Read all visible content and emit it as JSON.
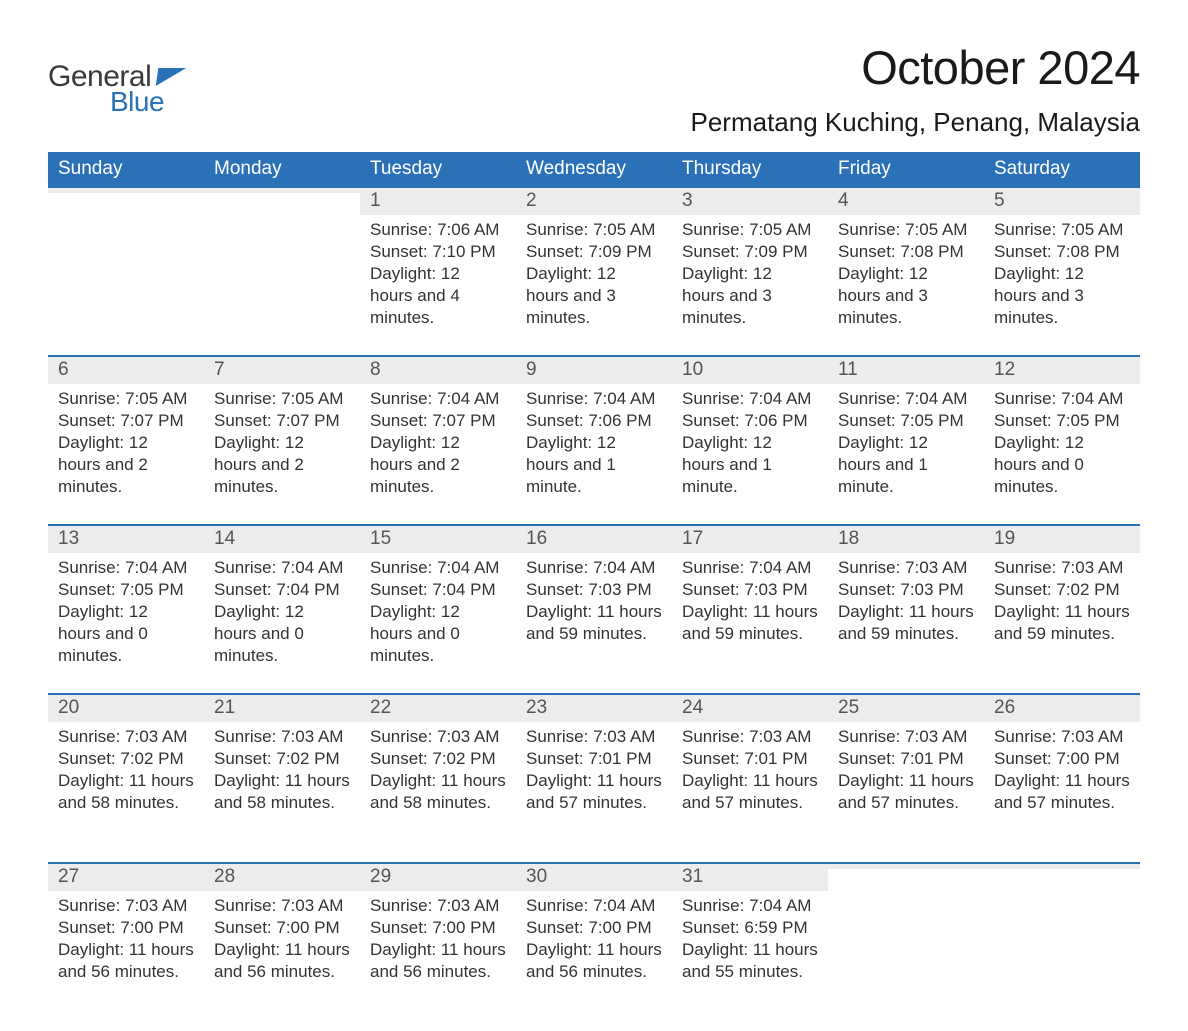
{
  "brand": {
    "word1": "General",
    "word2": "Blue"
  },
  "title": "October 2024",
  "location": "Permatang Kuching, Penang, Malaysia",
  "styling": {
    "header_bg": "#2a71b8",
    "header_fg": "#ffffff",
    "row_accent": "#2a71b8",
    "daynum_bg": "#ececec",
    "body_bg": "#ffffff",
    "text_color": "#333333",
    "title_fontsize": 47,
    "location_fontsize": 26,
    "header_fontsize": 19,
    "daynum_fontsize": 19,
    "body_fontsize": 17
  },
  "weekdays": [
    "Sunday",
    "Monday",
    "Tuesday",
    "Wednesday",
    "Thursday",
    "Friday",
    "Saturday"
  ],
  "weeks": [
    [
      null,
      null,
      {
        "n": "1",
        "sr": "7:06 AM",
        "ss": "7:10 PM",
        "dl": "12 hours and 4 minutes."
      },
      {
        "n": "2",
        "sr": "7:05 AM",
        "ss": "7:09 PM",
        "dl": "12 hours and 3 minutes."
      },
      {
        "n": "3",
        "sr": "7:05 AM",
        "ss": "7:09 PM",
        "dl": "12 hours and 3 minutes."
      },
      {
        "n": "4",
        "sr": "7:05 AM",
        "ss": "7:08 PM",
        "dl": "12 hours and 3 minutes."
      },
      {
        "n": "5",
        "sr": "7:05 AM",
        "ss": "7:08 PM",
        "dl": "12 hours and 3 minutes."
      }
    ],
    [
      {
        "n": "6",
        "sr": "7:05 AM",
        "ss": "7:07 PM",
        "dl": "12 hours and 2 minutes."
      },
      {
        "n": "7",
        "sr": "7:05 AM",
        "ss": "7:07 PM",
        "dl": "12 hours and 2 minutes."
      },
      {
        "n": "8",
        "sr": "7:04 AM",
        "ss": "7:07 PM",
        "dl": "12 hours and 2 minutes."
      },
      {
        "n": "9",
        "sr": "7:04 AM",
        "ss": "7:06 PM",
        "dl": "12 hours and 1 minute."
      },
      {
        "n": "10",
        "sr": "7:04 AM",
        "ss": "7:06 PM",
        "dl": "12 hours and 1 minute."
      },
      {
        "n": "11",
        "sr": "7:04 AM",
        "ss": "7:05 PM",
        "dl": "12 hours and 1 minute."
      },
      {
        "n": "12",
        "sr": "7:04 AM",
        "ss": "7:05 PM",
        "dl": "12 hours and 0 minutes."
      }
    ],
    [
      {
        "n": "13",
        "sr": "7:04 AM",
        "ss": "7:05 PM",
        "dl": "12 hours and 0 minutes."
      },
      {
        "n": "14",
        "sr": "7:04 AM",
        "ss": "7:04 PM",
        "dl": "12 hours and 0 minutes."
      },
      {
        "n": "15",
        "sr": "7:04 AM",
        "ss": "7:04 PM",
        "dl": "12 hours and 0 minutes."
      },
      {
        "n": "16",
        "sr": "7:04 AM",
        "ss": "7:03 PM",
        "dl": "11 hours and 59 minutes."
      },
      {
        "n": "17",
        "sr": "7:04 AM",
        "ss": "7:03 PM",
        "dl": "11 hours and 59 minutes."
      },
      {
        "n": "18",
        "sr": "7:03 AM",
        "ss": "7:03 PM",
        "dl": "11 hours and 59 minutes."
      },
      {
        "n": "19",
        "sr": "7:03 AM",
        "ss": "7:02 PM",
        "dl": "11 hours and 59 minutes."
      }
    ],
    [
      {
        "n": "20",
        "sr": "7:03 AM",
        "ss": "7:02 PM",
        "dl": "11 hours and 58 minutes."
      },
      {
        "n": "21",
        "sr": "7:03 AM",
        "ss": "7:02 PM",
        "dl": "11 hours and 58 minutes."
      },
      {
        "n": "22",
        "sr": "7:03 AM",
        "ss": "7:02 PM",
        "dl": "11 hours and 58 minutes."
      },
      {
        "n": "23",
        "sr": "7:03 AM",
        "ss": "7:01 PM",
        "dl": "11 hours and 57 minutes."
      },
      {
        "n": "24",
        "sr": "7:03 AM",
        "ss": "7:01 PM",
        "dl": "11 hours and 57 minutes."
      },
      {
        "n": "25",
        "sr": "7:03 AM",
        "ss": "7:01 PM",
        "dl": "11 hours and 57 minutes."
      },
      {
        "n": "26",
        "sr": "7:03 AM",
        "ss": "7:00 PM",
        "dl": "11 hours and 57 minutes."
      }
    ],
    [
      {
        "n": "27",
        "sr": "7:03 AM",
        "ss": "7:00 PM",
        "dl": "11 hours and 56 minutes."
      },
      {
        "n": "28",
        "sr": "7:03 AM",
        "ss": "7:00 PM",
        "dl": "11 hours and 56 minutes."
      },
      {
        "n": "29",
        "sr": "7:03 AM",
        "ss": "7:00 PM",
        "dl": "11 hours and 56 minutes."
      },
      {
        "n": "30",
        "sr": "7:04 AM",
        "ss": "7:00 PM",
        "dl": "11 hours and 56 minutes."
      },
      {
        "n": "31",
        "sr": "7:04 AM",
        "ss": "6:59 PM",
        "dl": "11 hours and 55 minutes."
      },
      null,
      null
    ]
  ],
  "labels": {
    "sunrise": "Sunrise: ",
    "sunset": "Sunset: ",
    "daylight": "Daylight: "
  }
}
